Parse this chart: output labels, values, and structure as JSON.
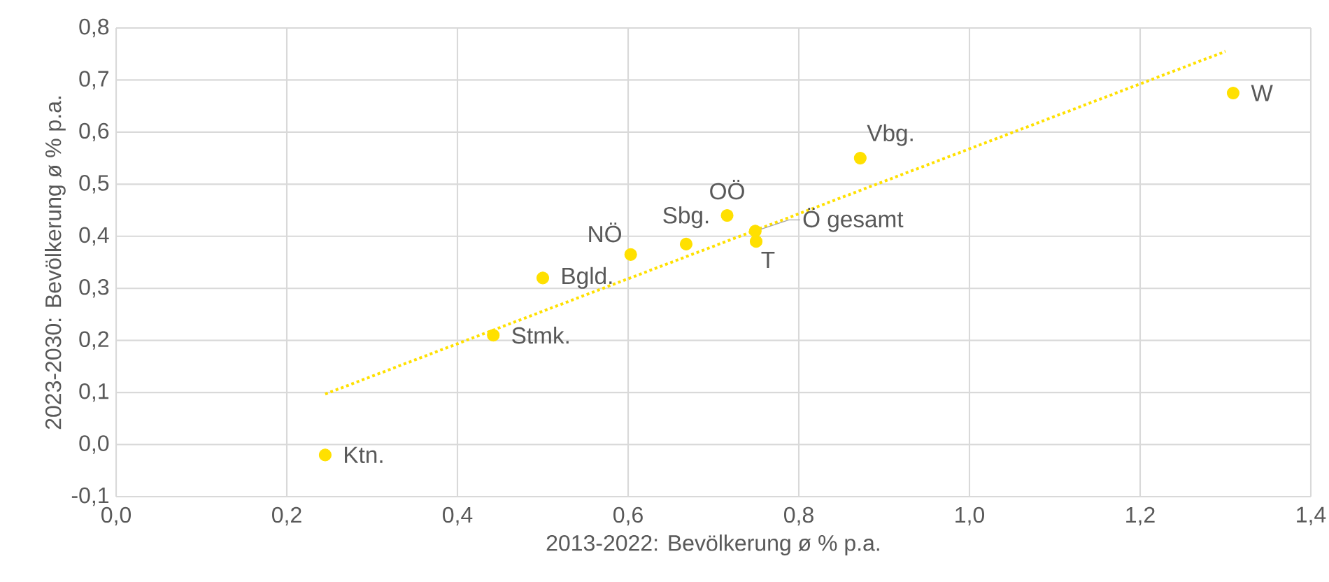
{
  "chart_data": {
    "type": "scatter",
    "xlabel": "2013-2022: Bevölkerung ø % p.a.",
    "ylabel": "2023-2030: Bevölkerung ø % p.a.",
    "series": [
      {
        "color": "#ffe000",
        "marker": "circle",
        "x": [
          0.245,
          0.442,
          0.5,
          0.603,
          0.668,
          0.716,
          0.749,
          0.75,
          0.872,
          1.309
        ],
        "values": [
          -0.02,
          0.21,
          0.32,
          0.365,
          0.385,
          0.44,
          0.41,
          0.39,
          0.55,
          0.675
        ]
      },
      {
        "type": "line",
        "color": "#ffe000",
        "line_style": "dotted",
        "x": [
          0.245,
          1.3
        ],
        "values": [
          0.097,
          0.755
        ]
      }
    ],
    "annotations": [
      {
        "text": "Ktn.",
        "x": 0.245,
        "y": -0.02
      },
      {
        "text": "Stmk.",
        "x": 0.442,
        "y": 0.21
      },
      {
        "text": "Bgld.",
        "x": 0.5,
        "y": 0.32
      },
      {
        "text": "NÖ",
        "x": 0.603,
        "y": 0.365
      },
      {
        "text": "Sbg.",
        "x": 0.668,
        "y": 0.385
      },
      {
        "text": "OÖ",
        "x": 0.716,
        "y": 0.44
      },
      {
        "text": "Ö gesamt",
        "x": 0.749,
        "y": 0.41
      },
      {
        "text": "T",
        "x": 0.75,
        "y": 0.39
      },
      {
        "text": "Vbg.",
        "x": 0.872,
        "y": 0.55
      },
      {
        "text": "W",
        "x": 1.309,
        "y": 0.675
      }
    ],
    "xlim": [
      0,
      1.4
    ],
    "ylim": [
      -0.1,
      0.8
    ],
    "xticks": [
      {
        "value": 0,
        "label": "0,0"
      },
      {
        "value": 0.2,
        "label": "0,2"
      },
      {
        "value": 0.4,
        "label": "0,4"
      },
      {
        "value": 0.6,
        "label": "0,6"
      },
      {
        "value": 0.8,
        "label": "0,8"
      },
      {
        "value": 1.0,
        "label": "1,0"
      },
      {
        "value": 1.2,
        "label": "1,2"
      },
      {
        "value": 1.4,
        "label": "1,4"
      }
    ],
    "yticks": [
      {
        "value": -0.1,
        "label": "-0,1"
      },
      {
        "value": 0,
        "label": "0,0"
      },
      {
        "value": 0.1,
        "label": "0,1"
      },
      {
        "value": 0.2,
        "label": "0,2"
      },
      {
        "value": 0.3,
        "label": "0,3"
      },
      {
        "value": 0.4,
        "label": "0,4"
      },
      {
        "value": 0.5,
        "label": "0,5"
      },
      {
        "value": 0.6,
        "label": "0,6"
      },
      {
        "value": 0.7,
        "label": "0,7"
      },
      {
        "value": 0.8,
        "label": "0,8"
      }
    ],
    "grid": true
  }
}
